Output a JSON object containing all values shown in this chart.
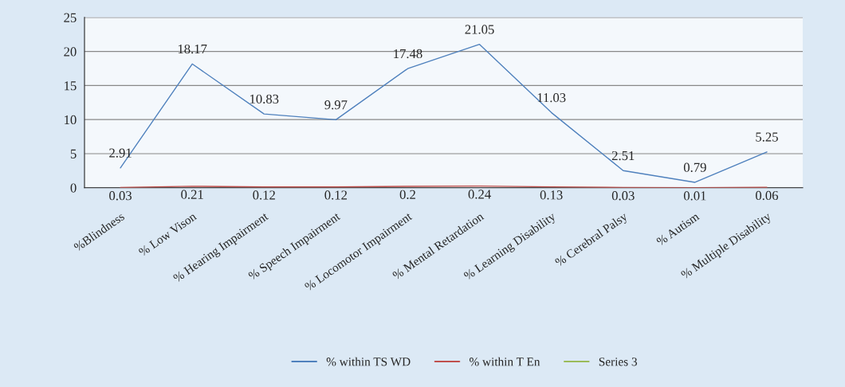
{
  "chart_data": {
    "type": "line",
    "categories": [
      "%Blindness",
      "% Low Vison",
      "% Hearing Impairment",
      "% Speech Impairment",
      "% Locomotor Impairment",
      "% Mental Retardation",
      "% Learning Disability",
      "% Cerebral Palsy",
      "% Autism",
      "% Multiple Disability"
    ],
    "series": [
      {
        "name": "% within TS WD",
        "color": "#4f81bd",
        "values": [
          2.91,
          18.17,
          10.83,
          9.97,
          17.48,
          21.05,
          11.03,
          2.51,
          0.79,
          5.25
        ]
      },
      {
        "name": "% within T En",
        "color": "#c0504d",
        "values": [
          0.03,
          0.21,
          0.12,
          0.12,
          0.2,
          0.24,
          0.13,
          0.03,
          0.01,
          0.06
        ]
      },
      {
        "name": "Series 3",
        "color": "#9bbb59",
        "values": [
          null,
          null,
          null,
          null,
          null,
          null,
          null,
          null,
          null,
          null
        ]
      }
    ],
    "ylim": [
      0,
      25
    ],
    "yticks": [
      0,
      5,
      10,
      15,
      20,
      25
    ],
    "grid": "y",
    "legend": "bottom",
    "marker": "none",
    "line_style": "solid",
    "data_labels": true
  }
}
